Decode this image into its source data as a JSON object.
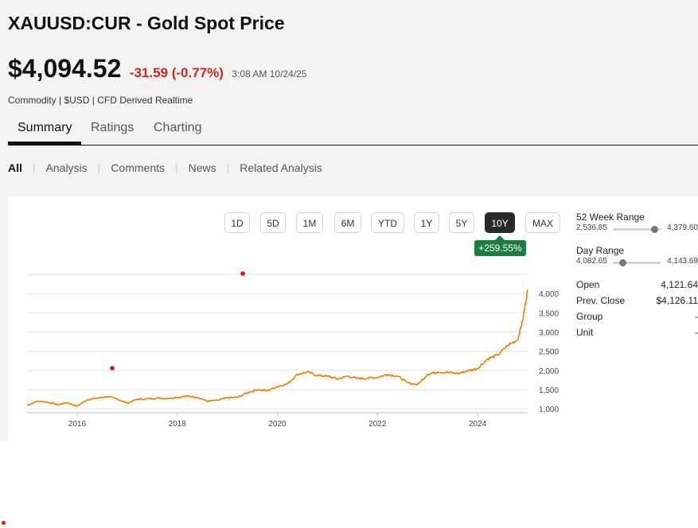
{
  "header": {
    "title": "XAUUSD:CUR - Gold Spot Price",
    "price": "$4,094.52",
    "change": "-31.59 (-0.77%)",
    "timestamp": "3:08 AM 10/24/25",
    "subtitle": "Commodity | $USD | CFD Derived Realtime"
  },
  "tabs": [
    "Summary",
    "Ratings",
    "Charting"
  ],
  "subnav": [
    "All",
    "Analysis",
    "Comments",
    "News",
    "Related Analysis"
  ],
  "ranges": [
    "1D",
    "5D",
    "1M",
    "6M",
    "YTD",
    "1Y",
    "5Y",
    "10Y",
    "MAX"
  ],
  "active_range": "10Y",
  "performance": "+259.55%",
  "stats": {
    "week52": {
      "label": "52 Week Range",
      "low": "2,536.85",
      "high": "4,379.60",
      "position": 0.87
    },
    "day": {
      "label": "Day Range",
      "low": "4,082.65",
      "high": "4,143.69",
      "position": 0.2
    },
    "rows": [
      {
        "label": "Open",
        "value": "4,121.64"
      },
      {
        "label": "Prev. Close",
        "value": "$4,126.11"
      },
      {
        "label": "Group",
        "value": "-"
      },
      {
        "label": "Unit",
        "value": "-"
      }
    ]
  },
  "colors": {
    "line": "#f07d00",
    "negative": "#c8281e",
    "badge": "#1b7e3f",
    "active_button": "#2a2a2a"
  },
  "chart_data": {
    "type": "line",
    "x_tick_labels": [
      "2016",
      "2018",
      "2020",
      "2022",
      "2024"
    ],
    "y_tick_labels": [
      "1,000",
      "1,500",
      "2,000",
      "2,500",
      "3,000",
      "3,500",
      "4,000"
    ],
    "ylim": [
      900,
      4500
    ],
    "grid": true,
    "series": [
      {
        "x": [
          2015.0,
          2015.2,
          2015.4,
          2015.6,
          2015.8,
          2016.0,
          2016.2,
          2016.4,
          2016.6,
          2016.8,
          2017.0,
          2017.2,
          2017.4,
          2017.6,
          2017.8,
          2018.0,
          2018.2,
          2018.4,
          2018.6,
          2018.8,
          2019.0,
          2019.2,
          2019.4,
          2019.6,
          2019.8,
          2020.0,
          2020.2,
          2020.4,
          2020.6,
          2020.8,
          2021.0,
          2021.2,
          2021.4,
          2021.6,
          2021.8,
          2022.0,
          2022.2,
          2022.4,
          2022.6,
          2022.8,
          2023.0,
          2023.2,
          2023.4,
          2023.6,
          2023.8,
          2024.0,
          2024.2,
          2024.4,
          2024.6,
          2024.8,
          2024.9,
          2025.0
        ],
        "y": [
          1090,
          1200,
          1180,
          1110,
          1160,
          1070,
          1240,
          1280,
          1320,
          1260,
          1150,
          1250,
          1260,
          1280,
          1270,
          1300,
          1330,
          1300,
          1200,
          1220,
          1290,
          1300,
          1420,
          1500,
          1470,
          1580,
          1650,
          1900,
          1960,
          1870,
          1850,
          1780,
          1850,
          1790,
          1800,
          1820,
          1900,
          1850,
          1680,
          1630,
          1900,
          1960,
          1950,
          1920,
          1990,
          2050,
          2300,
          2400,
          2650,
          2800,
          3300,
          4100
        ]
      }
    ]
  }
}
